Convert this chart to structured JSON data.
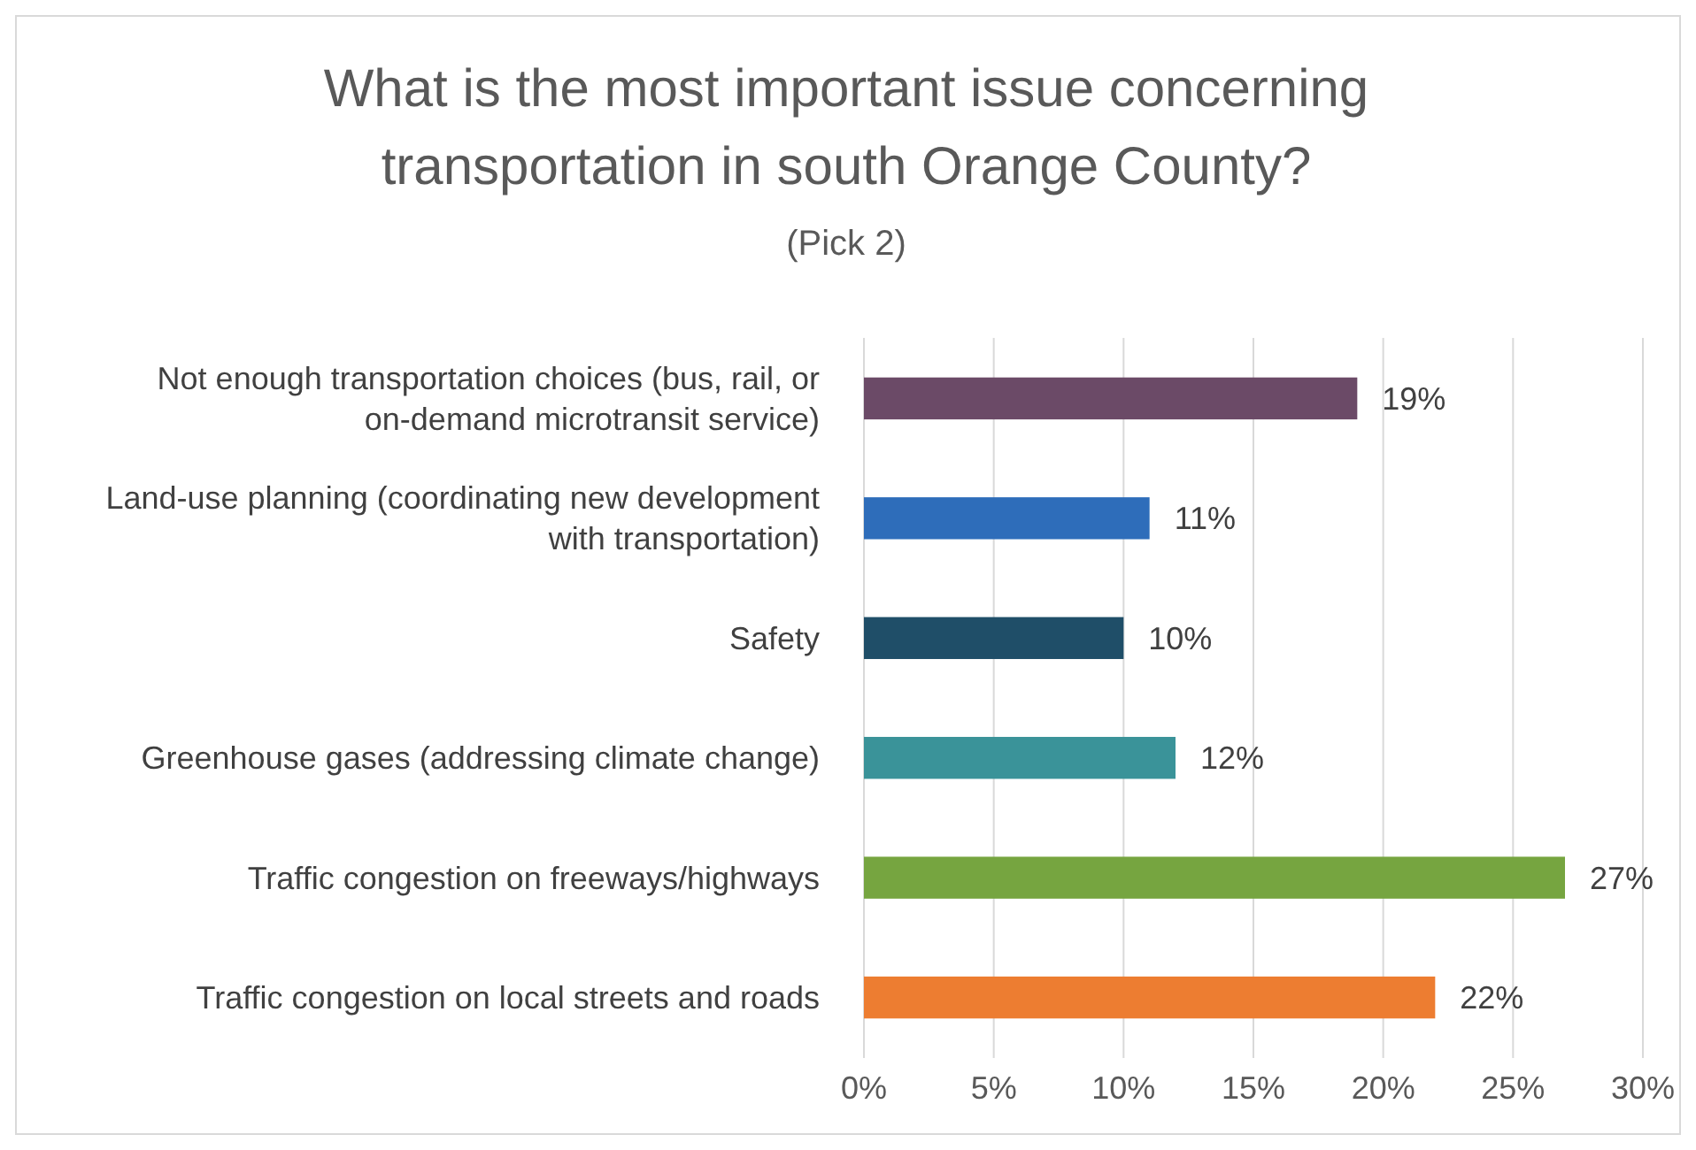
{
  "chart_data": {
    "type": "bar",
    "orientation": "horizontal",
    "title": "What is the most important issue concerning transportation in south Orange County?",
    "subtitle": "(Pick 2)",
    "categories": [
      "Not enough transportation choices (bus, rail, or on-demand microtransit service)",
      "Land-use planning (coordinating new development with transportation)",
      "Safety",
      "Greenhouse gases (addressing climate change)",
      "Traffic congestion on freeways/highways",
      "Traffic congestion on local streets and roads"
    ],
    "values": [
      19,
      11,
      10,
      12,
      27,
      22
    ],
    "colors": [
      "#6b4a67",
      "#2e6dba",
      "#1f4e68",
      "#3a9399",
      "#76a540",
      "#ed7d31"
    ],
    "value_labels": [
      "19%",
      "11%",
      "10%",
      "12%",
      "27%",
      "22%"
    ],
    "xlim": [
      0,
      30
    ],
    "xticks": [
      {
        "value": 0,
        "label": "0%"
      },
      {
        "value": 5,
        "label": "5%"
      },
      {
        "value": 10,
        "label": "10%"
      },
      {
        "value": 15,
        "label": "15%"
      },
      {
        "value": 20,
        "label": "20%"
      },
      {
        "value": 25,
        "label": "25%"
      },
      {
        "value": 30,
        "label": "30%"
      }
    ],
    "grid": "x"
  }
}
